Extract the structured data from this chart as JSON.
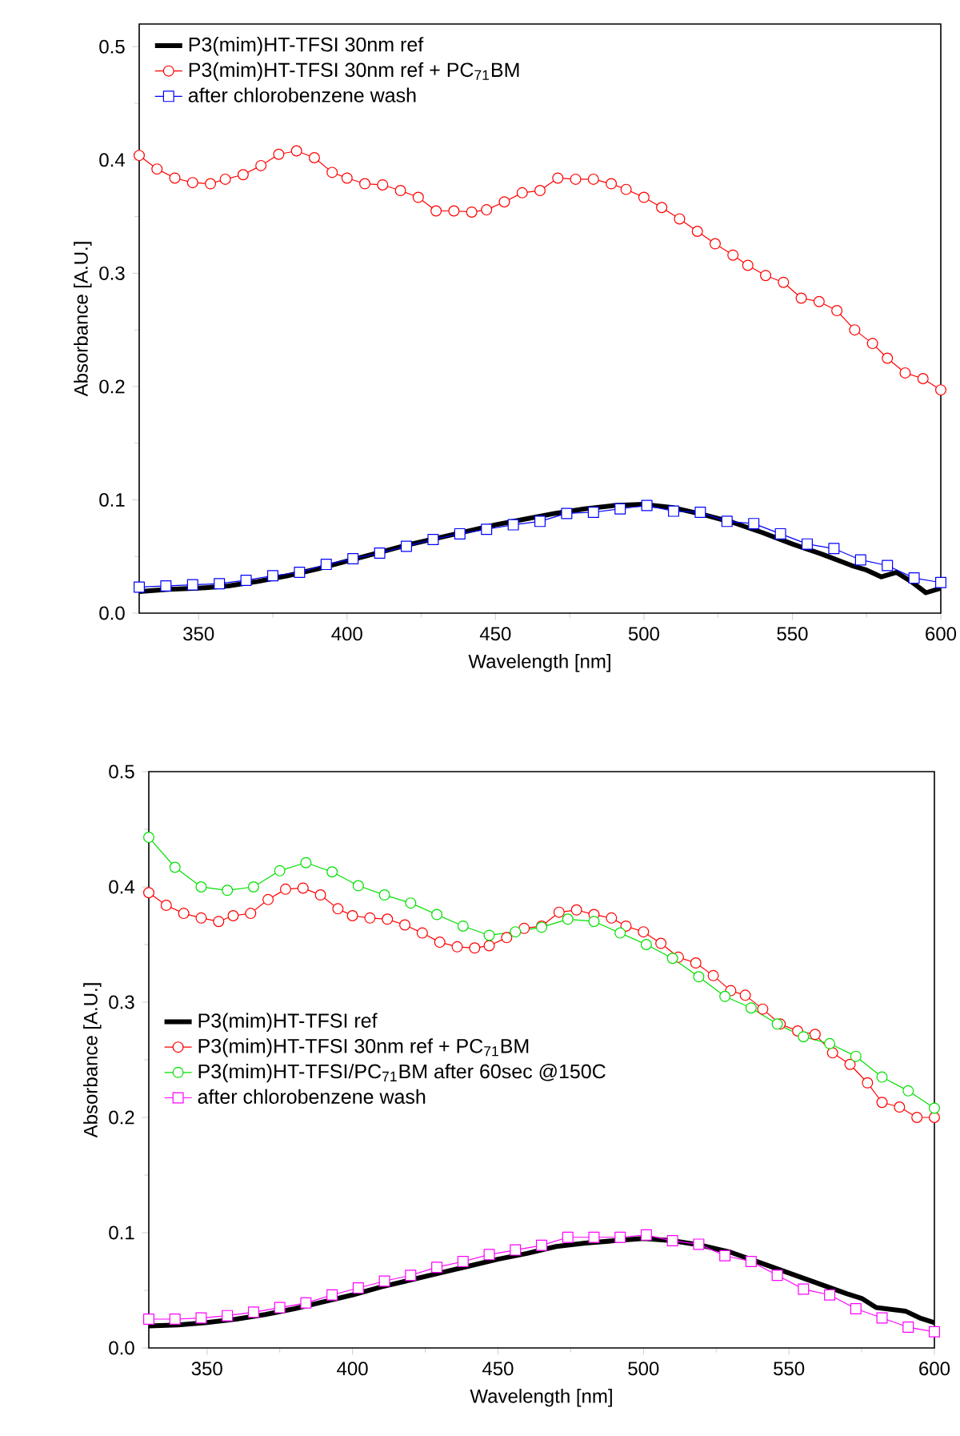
{
  "chart_data": [
    {
      "type": "line",
      "xlabel": "Wavelength [nm]",
      "ylabel": "Absorbance [A.U.]",
      "xlim": [
        330,
        600
      ],
      "ylim": [
        0,
        0.52
      ],
      "xticks": [
        350,
        400,
        450,
        500,
        550,
        600
      ],
      "yticks": [
        {
          "value": 0,
          "label": "0.0"
        },
        0.1,
        0.2,
        0.3,
        0.4,
        0.5
      ],
      "legend": "top left",
      "grid": false,
      "series": [
        {
          "name": "P3(mim)HT-TFSI 30nm ref",
          "color": "#000000",
          "marker": "none",
          "x": [
            330,
            340,
            350,
            360,
            370,
            380,
            390,
            400,
            410,
            420,
            430,
            440,
            450,
            460,
            470,
            480,
            490,
            500,
            510,
            520,
            530,
            540,
            550,
            560,
            570,
            575,
            580,
            585,
            590,
            595,
            600
          ],
          "values": [
            0.019,
            0.021,
            0.022,
            0.024,
            0.028,
            0.033,
            0.039,
            0.046,
            0.053,
            0.06,
            0.066,
            0.072,
            0.078,
            0.083,
            0.088,
            0.092,
            0.095,
            0.096,
            0.093,
            0.087,
            0.08,
            0.071,
            0.061,
            0.052,
            0.042,
            0.038,
            0.032,
            0.036,
            0.028,
            0.018,
            0.022
          ]
        },
        {
          "name": "P3(mim)HT-TFSI 30nm ref + PC$_{71}$BM",
          "color": "#ff0000",
          "marker": "circle",
          "x": [
            330,
            336,
            342,
            348,
            354,
            359,
            365,
            371,
            377,
            383,
            389,
            395,
            400,
            406,
            412,
            418,
            424,
            430,
            436,
            442,
            447,
            453,
            459,
            465,
            471,
            477,
            483,
            489,
            494,
            500,
            506,
            512,
            518,
            524,
            530,
            535,
            541,
            547,
            553,
            559,
            565,
            571,
            577,
            582,
            588,
            594,
            600
          ],
          "values": [
            0.404,
            0.392,
            0.384,
            0.38,
            0.379,
            0.383,
            0.387,
            0.395,
            0.405,
            0.408,
            0.402,
            0.389,
            0.384,
            0.379,
            0.378,
            0.373,
            0.367,
            0.355,
            0.355,
            0.354,
            0.356,
            0.363,
            0.371,
            0.373,
            0.384,
            0.383,
            0.383,
            0.379,
            0.374,
            0.367,
            0.358,
            0.348,
            0.337,
            0.326,
            0.316,
            0.307,
            0.298,
            0.292,
            0.278,
            0.275,
            0.267,
            0.25,
            0.238,
            0.225,
            0.212,
            0.207,
            0.197
          ]
        },
        {
          "name": "after chlorobenzene wash",
          "color": "#0000ff",
          "marker": "square",
          "x": [
            330,
            339,
            348,
            357,
            366,
            375,
            384,
            393,
            402,
            411,
            420,
            429,
            438,
            447,
            456,
            465,
            474,
            483,
            492,
            501,
            510,
            519,
            528,
            537,
            546,
            555,
            564,
            573,
            582,
            591,
            600
          ],
          "values": [
            0.023,
            0.024,
            0.025,
            0.026,
            0.029,
            0.033,
            0.036,
            0.043,
            0.048,
            0.053,
            0.059,
            0.065,
            0.07,
            0.074,
            0.078,
            0.081,
            0.088,
            0.089,
            0.092,
            0.095,
            0.09,
            0.089,
            0.081,
            0.079,
            0.07,
            0.061,
            0.057,
            0.047,
            0.042,
            0.031,
            0.027
          ]
        }
      ]
    },
    {
      "type": "line",
      "xlabel": "Wavelength [nm]",
      "ylabel": "Absorbance [A.U.]",
      "xlim": [
        330,
        600
      ],
      "ylim": [
        0,
        0.5
      ],
      "xticks": [
        350,
        400,
        450,
        500,
        550,
        600
      ],
      "yticks": [
        {
          "value": 0,
          "label": "0.0"
        },
        0.1,
        0.2,
        0.3,
        0.4,
        0.5
      ],
      "legend": "left",
      "grid": false,
      "series": [
        {
          "name": "P3(mim)HT-TFSI ref",
          "color": "#000000",
          "marker": "none",
          "x": [
            330,
            340,
            350,
            360,
            370,
            380,
            390,
            400,
            410,
            420,
            430,
            440,
            450,
            460,
            470,
            480,
            490,
            500,
            510,
            520,
            530,
            540,
            550,
            560,
            570,
            575,
            580,
            590,
            595,
            600
          ],
          "values": [
            0.019,
            0.02,
            0.022,
            0.025,
            0.029,
            0.034,
            0.04,
            0.046,
            0.053,
            0.059,
            0.065,
            0.071,
            0.077,
            0.082,
            0.088,
            0.091,
            0.093,
            0.095,
            0.093,
            0.089,
            0.083,
            0.074,
            0.065,
            0.056,
            0.047,
            0.043,
            0.035,
            0.032,
            0.026,
            0.022
          ]
        },
        {
          "name": "P3(mim)HT-TFSI 30nm ref + PC$_{71}$BM",
          "color": "#ff0000",
          "marker": "circle",
          "x": [
            330,
            336,
            342,
            348,
            354,
            359,
            365,
            371,
            377,
            383,
            389,
            395,
            400,
            406,
            412,
            418,
            424,
            430,
            436,
            442,
            447,
            453,
            459,
            465,
            471,
            477,
            483,
            489,
            494,
            500,
            506,
            512,
            518,
            524,
            530,
            535,
            541,
            547,
            553,
            559,
            565,
            571,
            577,
            582,
            588,
            594,
            600
          ],
          "values": [
            0.395,
            0.384,
            0.377,
            0.373,
            0.37,
            0.375,
            0.377,
            0.389,
            0.398,
            0.399,
            0.393,
            0.381,
            0.375,
            0.373,
            0.372,
            0.367,
            0.36,
            0.352,
            0.348,
            0.347,
            0.349,
            0.356,
            0.364,
            0.366,
            0.378,
            0.38,
            0.376,
            0.373,
            0.366,
            0.361,
            0.351,
            0.339,
            0.334,
            0.323,
            0.31,
            0.306,
            0.294,
            0.281,
            0.275,
            0.272,
            0.256,
            0.246,
            0.23,
            0.213,
            0.209,
            0.2,
            0.2
          ]
        },
        {
          "name": "P3(mim)HT-TFSI/PC$_{71}$BM after 60sec @150C",
          "color": "#00e000",
          "marker": "circle",
          "x": [
            330,
            339,
            348,
            357,
            366,
            375,
            384,
            393,
            402,
            411,
            420,
            429,
            438,
            447,
            456,
            465,
            474,
            483,
            492,
            501,
            510,
            519,
            528,
            537,
            546,
            555,
            564,
            573,
            582,
            591,
            600
          ],
          "values": [
            0.443,
            0.417,
            0.4,
            0.397,
            0.4,
            0.414,
            0.421,
            0.413,
            0.401,
            0.393,
            0.386,
            0.376,
            0.366,
            0.358,
            0.361,
            0.365,
            0.372,
            0.37,
            0.36,
            0.35,
            0.338,
            0.322,
            0.305,
            0.295,
            0.281,
            0.27,
            0.264,
            0.253,
            0.235,
            0.223,
            0.208
          ]
        },
        {
          "name": "after chlorobenzene wash",
          "color": "#ff00ff",
          "marker": "square",
          "x": [
            330,
            339,
            348,
            357,
            366,
            375,
            384,
            393,
            402,
            411,
            420,
            429,
            438,
            447,
            456,
            465,
            474,
            483,
            492,
            501,
            510,
            519,
            528,
            537,
            546,
            555,
            564,
            573,
            582,
            591,
            600
          ],
          "values": [
            0.025,
            0.025,
            0.026,
            0.028,
            0.031,
            0.035,
            0.039,
            0.046,
            0.052,
            0.058,
            0.063,
            0.07,
            0.075,
            0.081,
            0.085,
            0.089,
            0.096,
            0.096,
            0.096,
            0.098,
            0.093,
            0.09,
            0.08,
            0.075,
            0.063,
            0.051,
            0.046,
            0.034,
            0.026,
            0.018,
            0.014
          ]
        }
      ]
    }
  ]
}
